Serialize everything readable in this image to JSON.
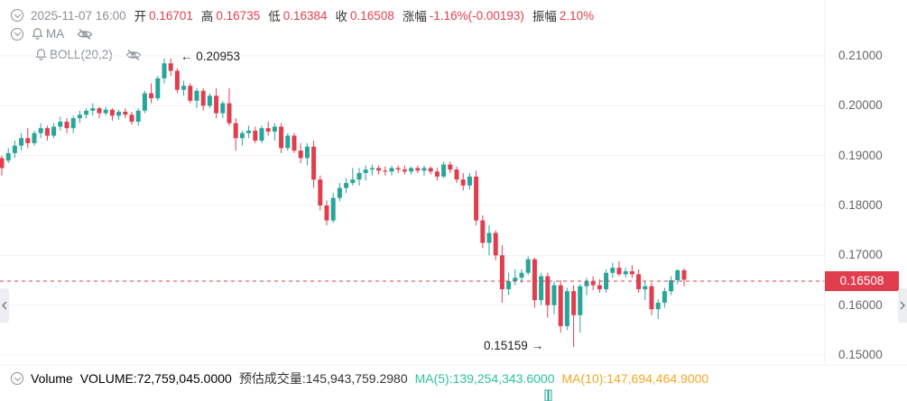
{
  "header": {
    "datetime": "2025-11-07 16:00",
    "open_label": "开",
    "open": "0.16701",
    "high_label": "高",
    "high": "0.16735",
    "low_label": "低",
    "low": "0.16384",
    "close_label": "收",
    "close": "0.16508",
    "change_label": "涨幅",
    "change": "-1.16%(-0.00193)",
    "amplitude_label": "振幅",
    "amplitude": "2.10%"
  },
  "indicators": {
    "ma": "MA",
    "boll": "BOLL(20,2)"
  },
  "volume_bar": {
    "label": "Volume",
    "volume": "VOLUME:72,759,045.0000",
    "estimated": "预估成交量:145,943,759.2980",
    "ma5": "MA(5):139,254,343.6000",
    "ma10": "MA(10):147,694,464.9000"
  },
  "markers": {
    "high": "0.20953",
    "low": "0.15159"
  },
  "current_price": "0.16508",
  "colors": {
    "up": "#26a69a",
    "down": "#e03e4e",
    "ma5": "#2cc0a0",
    "ma10": "#f5a623"
  },
  "chart_data": {
    "type": "candlestick",
    "y_ticks": [
      "0.21000",
      "0.20000",
      "0.19000",
      "0.18000",
      "0.17000",
      "0.16000",
      "0.15000"
    ],
    "ylim": [
      0.1485,
      0.2135
    ],
    "last_price": 0.16508,
    "candles": [
      [
        0.1895,
        0.19,
        0.186,
        0.1875
      ],
      [
        0.189,
        0.1915,
        0.1885,
        0.1905
      ],
      [
        0.1905,
        0.193,
        0.1895,
        0.192
      ],
      [
        0.192,
        0.1945,
        0.191,
        0.1935
      ],
      [
        0.1935,
        0.1955,
        0.1915,
        0.1925
      ],
      [
        0.1925,
        0.195,
        0.192,
        0.1945
      ],
      [
        0.1945,
        0.1965,
        0.1935,
        0.1955
      ],
      [
        0.1955,
        0.196,
        0.193,
        0.194
      ],
      [
        0.194,
        0.1965,
        0.1935,
        0.1958
      ],
      [
        0.1958,
        0.1978,
        0.195,
        0.1968
      ],
      [
        0.1968,
        0.1975,
        0.1945,
        0.1955
      ],
      [
        0.1955,
        0.198,
        0.1945,
        0.1975
      ],
      [
        0.1975,
        0.199,
        0.1965,
        0.1982
      ],
      [
        0.1982,
        0.1995,
        0.1975,
        0.199
      ],
      [
        0.199,
        0.2005,
        0.198,
        0.1995
      ],
      [
        0.1995,
        0.1998,
        0.1975,
        0.1985
      ],
      [
        0.1985,
        0.1998,
        0.198,
        0.1992
      ],
      [
        0.1992,
        0.1995,
        0.197,
        0.198
      ],
      [
        0.198,
        0.1992,
        0.1972,
        0.1988
      ],
      [
        0.1988,
        0.1995,
        0.1975,
        0.1982
      ],
      [
        0.1982,
        0.1988,
        0.1962,
        0.1968
      ],
      [
        0.1968,
        0.1995,
        0.196,
        0.199
      ],
      [
        0.199,
        0.203,
        0.1985,
        0.2025
      ],
      [
        0.2025,
        0.2045,
        0.2005,
        0.2015
      ],
      [
        0.2015,
        0.206,
        0.201,
        0.2055
      ],
      [
        0.2055,
        0.2095,
        0.2045,
        0.2085
      ],
      [
        0.2085,
        0.2095,
        0.206,
        0.207
      ],
      [
        0.207,
        0.2075,
        0.2025,
        0.2032
      ],
      [
        0.2032,
        0.205,
        0.202,
        0.204
      ],
      [
        0.204,
        0.2045,
        0.2005,
        0.201
      ],
      [
        0.201,
        0.2035,
        0.1995,
        0.203
      ],
      [
        0.203,
        0.2035,
        0.199,
        0.2
      ],
      [
        0.2,
        0.2025,
        0.1995,
        0.202
      ],
      [
        0.202,
        0.2035,
        0.1975,
        0.1985
      ],
      [
        0.1985,
        0.201,
        0.1975,
        0.2005
      ],
      [
        0.2005,
        0.2035,
        0.196,
        0.1965
      ],
      [
        0.1965,
        0.1975,
        0.191,
        0.1935
      ],
      [
        0.1935,
        0.195,
        0.192,
        0.1945
      ],
      [
        0.1945,
        0.196,
        0.1935,
        0.195
      ],
      [
        0.195,
        0.1958,
        0.1925,
        0.193
      ],
      [
        0.193,
        0.196,
        0.1925,
        0.1955
      ],
      [
        0.1955,
        0.1968,
        0.194,
        0.1948
      ],
      [
        0.1948,
        0.1965,
        0.193,
        0.1958
      ],
      [
        0.1958,
        0.1965,
        0.1905,
        0.1915
      ],
      [
        0.1915,
        0.1945,
        0.191,
        0.194
      ],
      [
        0.194,
        0.1945,
        0.1905,
        0.191
      ],
      [
        0.191,
        0.1925,
        0.1885,
        0.1895
      ],
      [
        0.1895,
        0.1925,
        0.188,
        0.1918
      ],
      [
        0.1918,
        0.193,
        0.1835,
        0.1852
      ],
      [
        0.1852,
        0.186,
        0.179,
        0.18
      ],
      [
        0.18,
        0.181,
        0.176,
        0.177
      ],
      [
        0.177,
        0.1825,
        0.1765,
        0.1815
      ],
      [
        0.1815,
        0.1845,
        0.1808,
        0.1835
      ],
      [
        0.1835,
        0.1855,
        0.1825,
        0.1845
      ],
      [
        0.1845,
        0.1875,
        0.184,
        0.1852
      ],
      [
        0.1852,
        0.1875,
        0.184,
        0.1865
      ],
      [
        0.1865,
        0.188,
        0.185,
        0.1872
      ],
      [
        0.1872,
        0.1882,
        0.186,
        0.1875
      ],
      [
        0.1875,
        0.188,
        0.1862,
        0.187
      ],
      [
        0.187,
        0.1878,
        0.186,
        0.1868
      ],
      [
        0.1868,
        0.188,
        0.186,
        0.1875
      ],
      [
        0.1875,
        0.188,
        0.1865,
        0.1872
      ],
      [
        0.1872,
        0.188,
        0.1862,
        0.1868
      ],
      [
        0.1868,
        0.1878,
        0.1862,
        0.1875
      ],
      [
        0.1875,
        0.188,
        0.1865,
        0.187
      ],
      [
        0.187,
        0.188,
        0.186,
        0.1875
      ],
      [
        0.1875,
        0.1878,
        0.1862,
        0.1868
      ],
      [
        0.1868,
        0.1875,
        0.185,
        0.1858
      ],
      [
        0.1858,
        0.1888,
        0.1855,
        0.1882
      ],
      [
        0.1882,
        0.1888,
        0.1865,
        0.1872
      ],
      [
        0.1872,
        0.1878,
        0.1845,
        0.1852
      ],
      [
        0.1852,
        0.1865,
        0.183,
        0.184
      ],
      [
        0.184,
        0.1865,
        0.1832,
        0.1858
      ],
      [
        0.1858,
        0.187,
        0.176,
        0.177
      ],
      [
        0.177,
        0.178,
        0.1715,
        0.1725
      ],
      [
        0.1725,
        0.176,
        0.17,
        0.1745
      ],
      [
        0.1745,
        0.175,
        0.169,
        0.17
      ],
      [
        0.17,
        0.172,
        0.1605,
        0.1632
      ],
      [
        0.1632,
        0.1665,
        0.162,
        0.1648
      ],
      [
        0.1648,
        0.1672,
        0.164,
        0.1655
      ],
      [
        0.1655,
        0.1672,
        0.1645,
        0.1665
      ],
      [
        0.1665,
        0.1698,
        0.166,
        0.1692
      ],
      [
        0.1692,
        0.1695,
        0.1595,
        0.161
      ],
      [
        0.161,
        0.1665,
        0.16,
        0.1658
      ],
      [
        0.1658,
        0.1665,
        0.1575,
        0.16
      ],
      [
        0.16,
        0.1648,
        0.1582,
        0.164
      ],
      [
        0.164,
        0.165,
        0.1545,
        0.1558
      ],
      [
        0.1558,
        0.1635,
        0.155,
        0.1628
      ],
      [
        0.1628,
        0.164,
        0.1516,
        0.158
      ],
      [
        0.158,
        0.1642,
        0.1545,
        0.1638
      ],
      [
        0.1638,
        0.1655,
        0.162,
        0.1648
      ],
      [
        0.1648,
        0.1658,
        0.163,
        0.164
      ],
      [
        0.164,
        0.1652,
        0.1625,
        0.1632
      ],
      [
        0.1632,
        0.1672,
        0.1625,
        0.1665
      ],
      [
        0.1665,
        0.1685,
        0.1655,
        0.1675
      ],
      [
        0.1675,
        0.1688,
        0.1658,
        0.1662
      ],
      [
        0.1662,
        0.1675,
        0.1655,
        0.1668
      ],
      [
        0.1668,
        0.168,
        0.1655,
        0.1662
      ],
      [
        0.1662,
        0.1672,
        0.1625,
        0.1632
      ],
      [
        0.1632,
        0.1648,
        0.161,
        0.1638
      ],
      [
        0.1638,
        0.1645,
        0.158,
        0.1592
      ],
      [
        0.1592,
        0.1612,
        0.1572,
        0.1605
      ],
      [
        0.1605,
        0.1635,
        0.1595,
        0.1628
      ],
      [
        0.1628,
        0.1658,
        0.162,
        0.165
      ],
      [
        0.165,
        0.1672,
        0.1642,
        0.167
      ],
      [
        0.167,
        0.1674,
        0.1638,
        0.1651
      ]
    ],
    "volume_visible": [
      0,
      0,
      0,
      0
    ]
  }
}
